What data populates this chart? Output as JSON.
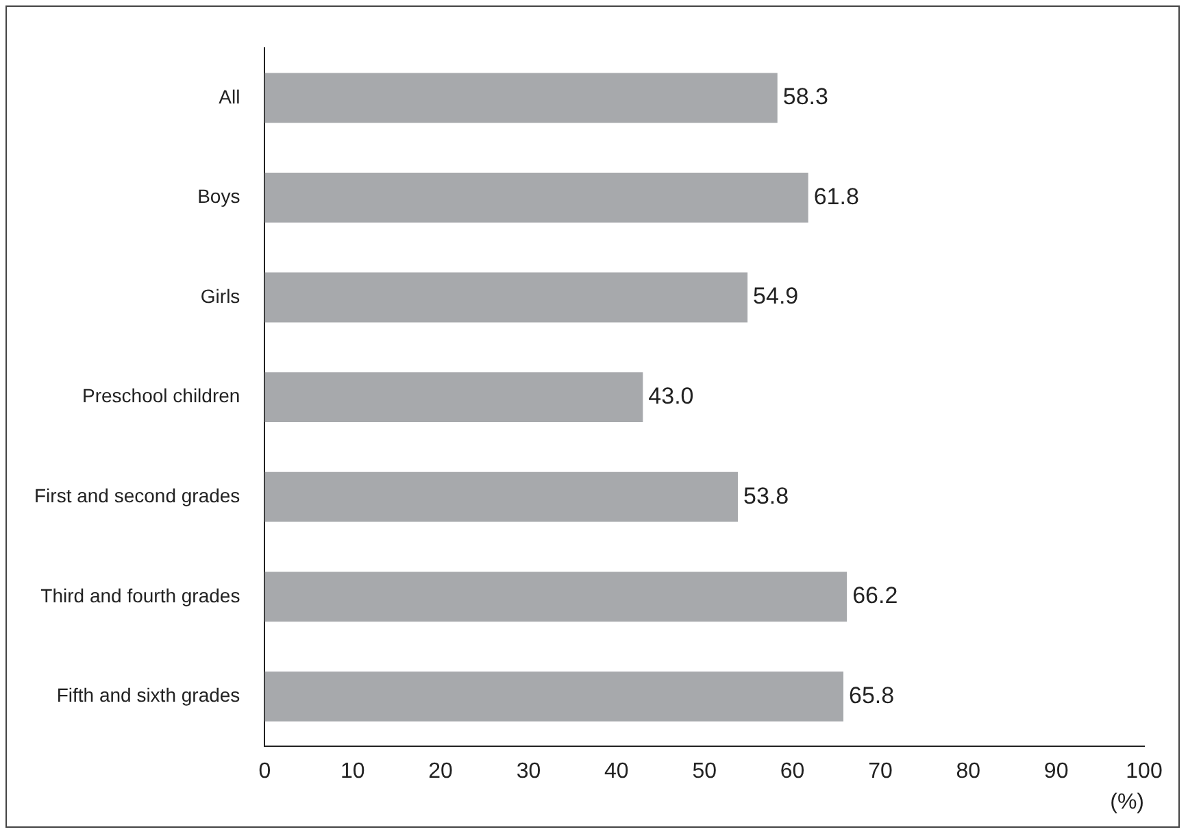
{
  "chart_data": {
    "type": "bar",
    "orientation": "horizontal",
    "categories": [
      "All",
      "Boys",
      "Girls",
      "Preschool children",
      "First and second grades",
      "Third and fourth grades",
      "Fifth and sixth grades"
    ],
    "values": [
      58.3,
      61.8,
      54.9,
      43.0,
      53.8,
      66.2,
      65.8
    ],
    "color": "#a7a9ac",
    "xlim": [
      0,
      100
    ],
    "xticks": [
      0,
      10,
      20,
      30,
      40,
      50,
      60,
      70,
      80,
      90,
      100
    ],
    "xlabel": "(%)",
    "value_labels": [
      "58.3",
      "61.8",
      "54.9",
      "43.0",
      "53.8",
      "66.2",
      "65.8"
    ],
    "grid": false,
    "legend": false
  }
}
